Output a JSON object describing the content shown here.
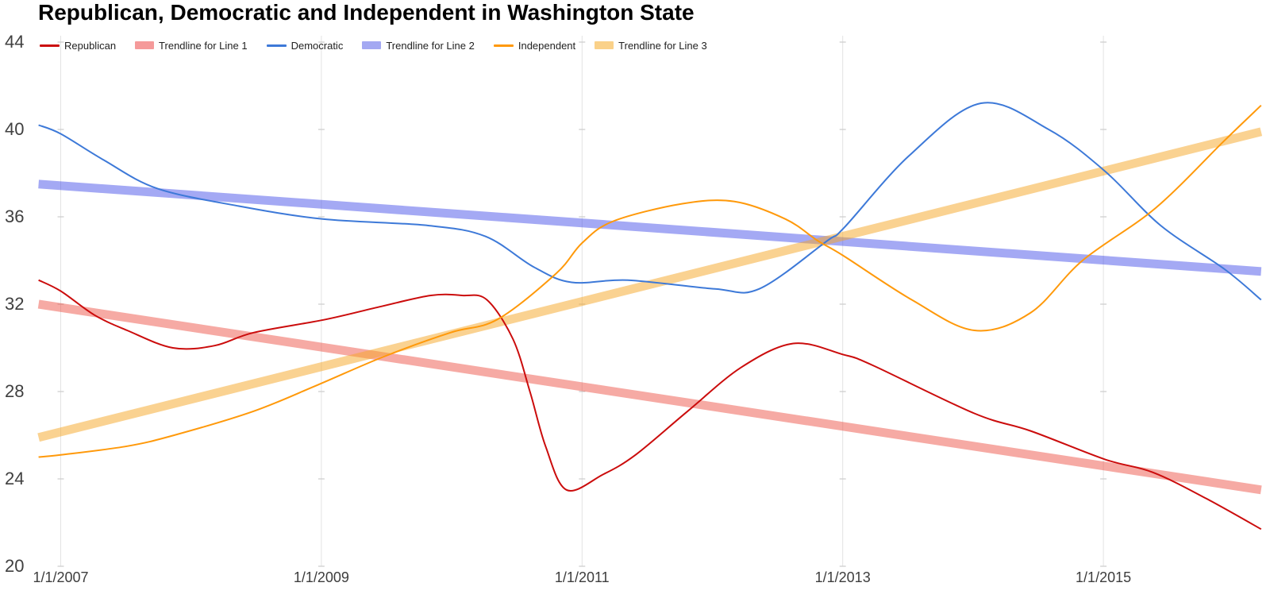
{
  "page": {
    "background": "#ffffff"
  },
  "chart_data": {
    "type": "line",
    "title": "Republican, Democratic and Independent in Washington State",
    "legend_position": "top",
    "grid": {
      "vertical": true,
      "horizontal": false,
      "gridline_color": "#e3e3e3",
      "tick_notch_color": "#cccccc"
    },
    "x_axis": {
      "tick_labels": [
        "1/1/2007",
        "1/1/2009",
        "1/1/2011",
        "1/1/2013",
        "1/1/2015"
      ],
      "tick_years": [
        2007,
        2009,
        2011,
        2013,
        2015
      ]
    },
    "y_axis": {
      "ticks": [
        20,
        24,
        28,
        32,
        36,
        40,
        44
      ],
      "min": 20,
      "max": 44
    },
    "x_range": [
      2006.83,
      2016.21
    ],
    "legend": [
      {
        "label": "Republican",
        "swatch": "line",
        "color": "#cb0c0c"
      },
      {
        "label": "Trendline for Line 1",
        "swatch": "box",
        "color": "#f59a9a"
      },
      {
        "label": "Democratic",
        "swatch": "line",
        "color": "#3d79d8"
      },
      {
        "label": "Trendline for Line 2",
        "swatch": "box",
        "color": "#a3a8f2"
      },
      {
        "label": "Independent",
        "swatch": "line",
        "color": "#ff990a"
      },
      {
        "label": "Trendline for Line 3",
        "swatch": "box",
        "color": "#fad189"
      }
    ],
    "series": [
      {
        "name": "Trendline for Line 1",
        "kind": "trendline",
        "color": "rgba(234,67,53,0.45)",
        "stroke_width": 11,
        "points": [
          [
            2006.83,
            32.0
          ],
          [
            2016.21,
            23.5
          ]
        ]
      },
      {
        "name": "Trendline for Line 2",
        "kind": "trendline",
        "color": "rgba(62,72,232,0.47)",
        "stroke_width": 11,
        "points": [
          [
            2006.83,
            37.5
          ],
          [
            2016.21,
            33.5
          ]
        ]
      },
      {
        "name": "Trendline for Line 3",
        "kind": "trendline",
        "color": "rgba(245,166,35,0.5)",
        "stroke_width": 11,
        "points": [
          [
            2006.83,
            25.9
          ],
          [
            2016.21,
            39.9
          ]
        ]
      },
      {
        "name": "Republican",
        "kind": "line",
        "color": "#cb0c0c",
        "stroke_width": 2,
        "points": [
          [
            2006.83,
            33.1
          ],
          [
            2007.0,
            32.6
          ],
          [
            2007.26,
            31.5
          ],
          [
            2007.51,
            30.8
          ],
          [
            2007.86,
            30.0
          ],
          [
            2008.18,
            30.1
          ],
          [
            2008.48,
            30.7
          ],
          [
            2009.03,
            31.3
          ],
          [
            2009.46,
            31.9
          ],
          [
            2009.84,
            32.4
          ],
          [
            2010.08,
            32.4
          ],
          [
            2010.27,
            32.2
          ],
          [
            2010.47,
            30.4
          ],
          [
            2010.6,
            28.0
          ],
          [
            2010.72,
            25.5
          ],
          [
            2010.88,
            23.5
          ],
          [
            2011.16,
            24.2
          ],
          [
            2011.41,
            25.1
          ],
          [
            2011.81,
            27.1
          ],
          [
            2012.22,
            29.1
          ],
          [
            2012.62,
            30.2
          ],
          [
            2013.0,
            29.7
          ],
          [
            2013.23,
            29.2
          ],
          [
            2014.01,
            27.0
          ],
          [
            2014.44,
            26.2
          ],
          [
            2015.01,
            24.9
          ],
          [
            2015.38,
            24.3
          ],
          [
            2015.79,
            23.1
          ],
          [
            2016.21,
            21.7
          ]
        ]
      },
      {
        "name": "Democratic",
        "kind": "line",
        "color": "#3d79d8",
        "stroke_width": 2,
        "points": [
          [
            2006.83,
            40.2
          ],
          [
            2007.0,
            39.8
          ],
          [
            2007.33,
            38.6
          ],
          [
            2007.74,
            37.3
          ],
          [
            2008.36,
            36.5
          ],
          [
            2009.01,
            35.9
          ],
          [
            2009.82,
            35.6
          ],
          [
            2010.26,
            35.1
          ],
          [
            2010.63,
            33.7
          ],
          [
            2010.92,
            33.0
          ],
          [
            2011.35,
            33.1
          ],
          [
            2012.02,
            32.7
          ],
          [
            2012.36,
            32.7
          ],
          [
            2012.88,
            34.9
          ],
          [
            2013.01,
            35.5
          ],
          [
            2013.51,
            38.8
          ],
          [
            2014.06,
            41.2
          ],
          [
            2014.58,
            40.0
          ],
          [
            2015.01,
            38.1
          ],
          [
            2015.44,
            35.6
          ],
          [
            2015.93,
            33.6
          ],
          [
            2016.21,
            32.2
          ]
        ]
      },
      {
        "name": "Independent",
        "kind": "line",
        "color": "#ff990a",
        "stroke_width": 2,
        "points": [
          [
            2006.83,
            25.0
          ],
          [
            2007.0,
            25.1
          ],
          [
            2007.51,
            25.5
          ],
          [
            2007.87,
            26.0
          ],
          [
            2008.48,
            27.1
          ],
          [
            2008.97,
            28.3
          ],
          [
            2009.48,
            29.6
          ],
          [
            2009.99,
            30.7
          ],
          [
            2010.35,
            31.3
          ],
          [
            2010.8,
            33.4
          ],
          [
            2011.0,
            34.8
          ],
          [
            2011.24,
            35.8
          ],
          [
            2011.77,
            36.6
          ],
          [
            2012.17,
            36.7
          ],
          [
            2012.56,
            35.9
          ],
          [
            2012.81,
            34.9
          ],
          [
            2013.01,
            34.2
          ],
          [
            2013.53,
            32.2
          ],
          [
            2014.01,
            30.8
          ],
          [
            2014.44,
            31.6
          ],
          [
            2014.84,
            34.0
          ],
          [
            2015.4,
            36.4
          ],
          [
            2015.93,
            39.5
          ],
          [
            2016.21,
            41.1
          ]
        ]
      }
    ]
  }
}
